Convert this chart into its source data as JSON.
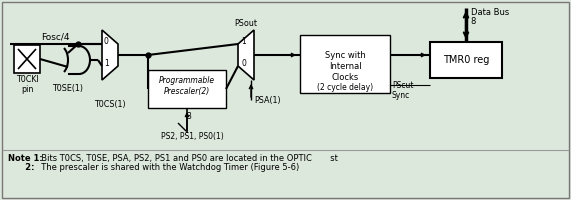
{
  "bg_color": "#dde8dd",
  "box_fc": "#ffffff",
  "line_color": "#000000",
  "fosc_label": "Fosc/4",
  "t0cki_label": "T0CKI\npin",
  "t0se_label": "T0SE(1)",
  "t0cs_label": "T0CS(1)",
  "ps_label": "PS2, PS1, PS0(1)",
  "psa_label": "PSA(1)",
  "psout_label": "PSout",
  "pscut_label": "PScut\nSync",
  "databus_label": "Data Bus",
  "tmr0_label": "TMR0 reg",
  "sync_label": "Sync with\nInternal\nClocks",
  "delay_label": "(2 cycle delay)",
  "prog_label": "Programmable\nPrescaler(2)",
  "mux1_0": "0",
  "mux1_1": "1",
  "mux2_1": "1",
  "mux2_0": "0",
  "num3": "3",
  "num8": "8",
  "note1_bold": "Note 1:",
  "note1_rest": "  Bits T0CS, T0SE, PSA, PS2, PS1 and PS0 are located in the OPTIC       st",
  "note2_bold": "      2:",
  "note2_rest": "  The prescaler is shared with the Watchdog Timer (Figure 5-6)"
}
